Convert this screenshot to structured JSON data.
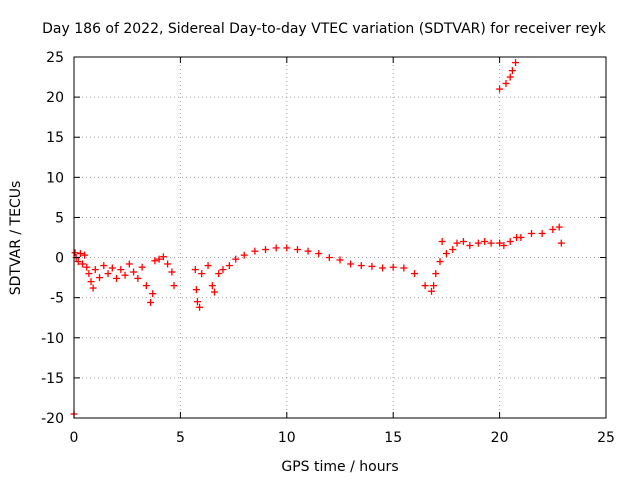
{
  "chart_data": {
    "type": "scatter",
    "title": "Day 186 of 2022, Sidereal Day-to-day VTEC variation (SDTVAR) for receiver reyk",
    "xlabel": "GPS time / hours",
    "ylabel": "SDTVAR / TECUs",
    "xlim": [
      0,
      25
    ],
    "ylim": [
      -20,
      25
    ],
    "x_ticks": [
      0,
      5,
      10,
      15,
      20,
      25
    ],
    "y_ticks": [
      -20,
      -15,
      -10,
      -5,
      0,
      5,
      10,
      15,
      20,
      25
    ],
    "grid": true,
    "legend": "none",
    "series": [
      {
        "name": "SDTVAR",
        "color": "#ff0000",
        "marker": "+",
        "points": [
          [
            0.0,
            -19.5
          ],
          [
            0.05,
            0.6
          ],
          [
            0.1,
            0.0
          ],
          [
            0.2,
            -0.5
          ],
          [
            0.3,
            0.5
          ],
          [
            0.4,
            -0.8
          ],
          [
            0.5,
            0.3
          ],
          [
            0.6,
            -1.2
          ],
          [
            0.7,
            -2.0
          ],
          [
            0.8,
            -3.0
          ],
          [
            0.9,
            -3.8
          ],
          [
            1.0,
            -1.5
          ],
          [
            1.2,
            -2.5
          ],
          [
            1.4,
            -1.0
          ],
          [
            1.6,
            -2.0
          ],
          [
            1.8,
            -1.3
          ],
          [
            2.0,
            -2.6
          ],
          [
            2.2,
            -1.5
          ],
          [
            2.4,
            -2.2
          ],
          [
            2.6,
            -0.8
          ],
          [
            2.8,
            -1.8
          ],
          [
            3.0,
            -2.6
          ],
          [
            3.2,
            -1.2
          ],
          [
            3.4,
            -3.5
          ],
          [
            3.6,
            -5.6
          ],
          [
            3.7,
            -4.5
          ],
          [
            3.8,
            -0.4
          ],
          [
            4.0,
            -0.2
          ],
          [
            4.2,
            0.1
          ],
          [
            4.4,
            -0.8
          ],
          [
            4.6,
            -1.8
          ],
          [
            4.7,
            -3.5
          ],
          [
            5.7,
            -1.5
          ],
          [
            5.75,
            -4.0
          ],
          [
            5.8,
            -5.5
          ],
          [
            5.9,
            -6.2
          ],
          [
            6.0,
            -2.0
          ],
          [
            6.3,
            -1.0
          ],
          [
            6.5,
            -3.5
          ],
          [
            6.6,
            -4.3
          ],
          [
            6.8,
            -2.0
          ],
          [
            7.0,
            -1.5
          ],
          [
            7.3,
            -1.0
          ],
          [
            7.6,
            -0.2
          ],
          [
            8.0,
            0.3
          ],
          [
            8.5,
            0.8
          ],
          [
            9.0,
            1.0
          ],
          [
            9.5,
            1.2
          ],
          [
            10.0,
            1.2
          ],
          [
            10.5,
            1.0
          ],
          [
            11.0,
            0.8
          ],
          [
            11.5,
            0.5
          ],
          [
            12.0,
            0.0
          ],
          [
            12.5,
            -0.3
          ],
          [
            13.0,
            -0.8
          ],
          [
            13.5,
            -1.0
          ],
          [
            14.0,
            -1.1
          ],
          [
            14.5,
            -1.3
          ],
          [
            15.0,
            -1.2
          ],
          [
            15.5,
            -1.3
          ],
          [
            16.0,
            -2.0
          ],
          [
            16.5,
            -3.5
          ],
          [
            16.8,
            -4.2
          ],
          [
            16.9,
            -3.5
          ],
          [
            17.0,
            -2.0
          ],
          [
            17.2,
            -0.5
          ],
          [
            17.3,
            2.0
          ],
          [
            17.5,
            0.5
          ],
          [
            17.8,
            1.0
          ],
          [
            18.0,
            1.8
          ],
          [
            18.3,
            2.0
          ],
          [
            18.6,
            1.5
          ],
          [
            19.0,
            1.8
          ],
          [
            19.3,
            2.0
          ],
          [
            19.6,
            1.8
          ],
          [
            20.0,
            1.8
          ],
          [
            20.2,
            1.5
          ],
          [
            20.5,
            2.0
          ],
          [
            20.8,
            2.5
          ],
          [
            21.0,
            2.5
          ],
          [
            21.5,
            3.0
          ],
          [
            22.0,
            3.0
          ],
          [
            22.5,
            3.5
          ],
          [
            22.8,
            3.8
          ],
          [
            22.9,
            1.8
          ],
          [
            20.0,
            21.0
          ],
          [
            20.3,
            21.7
          ],
          [
            20.5,
            22.5
          ],
          [
            20.6,
            23.3
          ],
          [
            20.75,
            24.3
          ]
        ]
      }
    ]
  }
}
